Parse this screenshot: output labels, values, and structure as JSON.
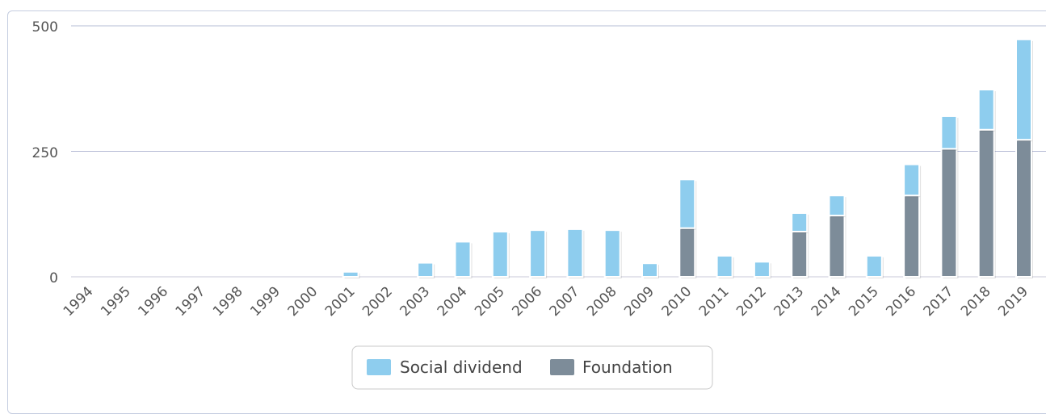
{
  "chart_data": {
    "type": "bar",
    "stacked": true,
    "categories": [
      "1994",
      "1995",
      "1996",
      "1997",
      "1998",
      "1999",
      "2000",
      "2001",
      "2002",
      "2003",
      "2004",
      "2005",
      "2006",
      "2007",
      "2008",
      "2009",
      "2010",
      "2011",
      "2012",
      "2013",
      "2014",
      "2015",
      "2016",
      "2017",
      "2018",
      "2019"
    ],
    "series": [
      {
        "name": "Foundation",
        "color": "#7d8c99",
        "values": [
          0,
          0,
          0,
          0,
          0,
          0,
          0,
          0,
          0,
          0,
          0,
          0,
          0,
          0,
          0,
          0,
          97,
          0,
          0,
          90,
          122,
          0,
          162,
          255,
          293,
          273
        ]
      },
      {
        "name": "Social dividend",
        "color": "#8ecdee",
        "values": [
          0,
          0,
          0,
          0,
          0,
          0,
          0,
          10,
          0,
          28,
          70,
          90,
          93,
          95,
          93,
          27,
          97,
          42,
          30,
          37,
          40,
          42,
          62,
          65,
          80,
          200
        ]
      }
    ],
    "ylim": [
      0,
      500
    ],
    "yticks": [
      "0",
      "250",
      "500"
    ],
    "grid": true,
    "legend": {
      "position": "bottom",
      "items": [
        "Social dividend",
        "Foundation"
      ]
    }
  }
}
